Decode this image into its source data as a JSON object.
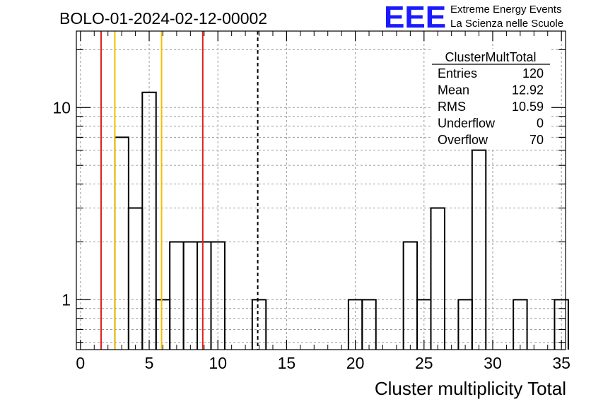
{
  "header": {
    "run_title": "BOLO-01-2024-02-12-00002",
    "logo_text": "EEE",
    "logo_line1": "Extreme Energy Events",
    "logo_line2": "La Scienza nelle Scuole",
    "logo_color": "#1a1aff"
  },
  "stats_box": {
    "title": "ClusterMultTotal",
    "rows": [
      {
        "label": "Entries",
        "value": "120"
      },
      {
        "label": "Mean",
        "value": "12.92"
      },
      {
        "label": "RMS",
        "value": "10.59"
      },
      {
        "label": "Underflow",
        "value": "0"
      },
      {
        "label": "Overflow",
        "value": "70"
      }
    ]
  },
  "chart_data": {
    "type": "histogram",
    "title": "",
    "xlabel": "Cluster multiplicity Total",
    "ylabel": "",
    "y_scale": "log",
    "xlim": [
      -0.3,
      35.3
    ],
    "ylim": [
      0.55,
      25
    ],
    "x_ticks": [
      0,
      5,
      10,
      15,
      20,
      25,
      30,
      35
    ],
    "y_tick_labels": [
      {
        "value": 1,
        "label": "1"
      },
      {
        "value": 10,
        "label": "10"
      }
    ],
    "grid": true,
    "bin_width": 1,
    "bins": [
      {
        "x0": 2.5,
        "count": 7
      },
      {
        "x0": 3.5,
        "count": 3
      },
      {
        "x0": 4.5,
        "count": 12
      },
      {
        "x0": 5.5,
        "count": 1
      },
      {
        "x0": 6.5,
        "count": 2
      },
      {
        "x0": 7.5,
        "count": 2
      },
      {
        "x0": 8.5,
        "count": 2
      },
      {
        "x0": 9.5,
        "count": 2
      },
      {
        "x0": 12.5,
        "count": 1
      },
      {
        "x0": 19.5,
        "count": 1
      },
      {
        "x0": 20.5,
        "count": 1
      },
      {
        "x0": 23.5,
        "count": 2
      },
      {
        "x0": 24.5,
        "count": 1
      },
      {
        "x0": 25.5,
        "count": 3
      },
      {
        "x0": 27.5,
        "count": 1
      },
      {
        "x0": 28.5,
        "count": 6
      },
      {
        "x0": 31.5,
        "count": 1
      },
      {
        "x0": 34.5,
        "count": 1
      }
    ],
    "vertical_lines": [
      {
        "x": 1.5,
        "color": "#e0201c",
        "style": "solid"
      },
      {
        "x": 2.5,
        "color": "#f0c000",
        "style": "solid"
      },
      {
        "x": 5.9,
        "color": "#f0c000",
        "style": "solid"
      },
      {
        "x": 8.9,
        "color": "#e0201c",
        "style": "solid"
      },
      {
        "x": 12.9,
        "color": "#000000",
        "style": "dashed"
      }
    ]
  }
}
